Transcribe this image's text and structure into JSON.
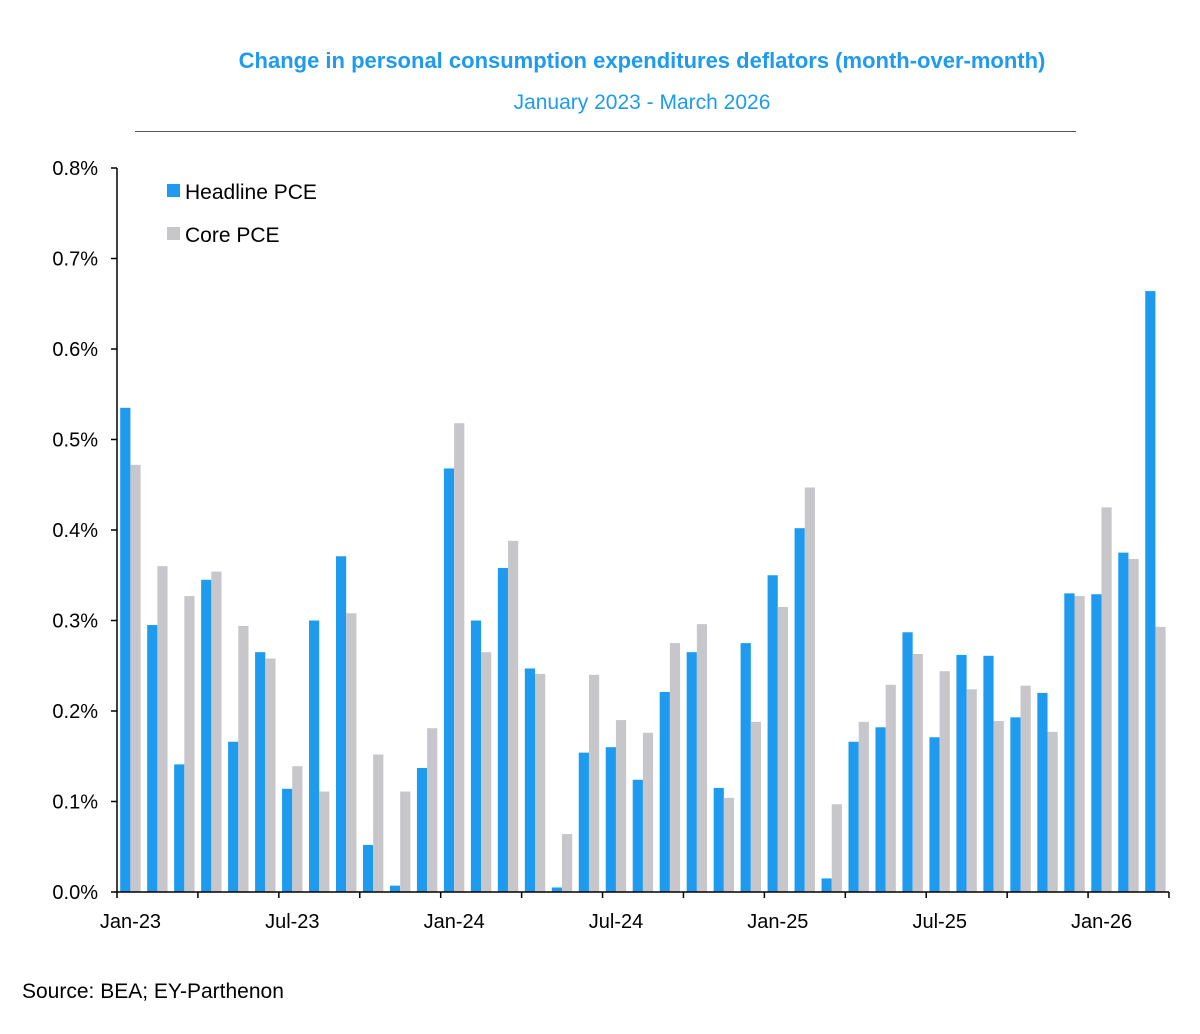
{
  "header": {
    "title": "Change in personal consumption expenditures deflators (month-over-month)",
    "subtitle": "January 2023 - March 2026"
  },
  "footer": {
    "source": "Source: BEA; EY-Parthenon"
  },
  "colors": {
    "headline": "#1E9BEE",
    "core": "#C7C7CB",
    "title": "#1E9BEE"
  },
  "chart_data": {
    "type": "bar",
    "title": "Change in personal consumption expenditures deflators (month-over-month)",
    "subtitle": "January 2023 - March 2026",
    "xlabel": "",
    "ylabel": "",
    "ylim": [
      0,
      0.8
    ],
    "yticks": [
      0.0,
      0.1,
      0.2,
      0.3,
      0.4,
      0.5,
      0.6,
      0.7,
      0.8
    ],
    "ytick_labels": [
      "0.0%",
      "0.1%",
      "0.2%",
      "0.3%",
      "0.4%",
      "0.5%",
      "0.6%",
      "0.7%",
      "0.8%"
    ],
    "x_tick_labels": [
      {
        "index": 0,
        "label": "Jan-23"
      },
      {
        "index": 6,
        "label": "Jul-23"
      },
      {
        "index": 12,
        "label": "Jan-24"
      },
      {
        "index": 18,
        "label": "Jul-24"
      },
      {
        "index": 24,
        "label": "Jan-25"
      },
      {
        "index": 30,
        "label": "Jul-25"
      },
      {
        "index": 36,
        "label": "Jan-26"
      }
    ],
    "categories": [
      "Jan-23",
      "Feb-23",
      "Mar-23",
      "Apr-23",
      "May-23",
      "Jun-23",
      "Jul-23",
      "Aug-23",
      "Sep-23",
      "Oct-23",
      "Nov-23",
      "Dec-23",
      "Jan-24",
      "Feb-24",
      "Mar-24",
      "Apr-24",
      "May-24",
      "Jun-24",
      "Jul-24",
      "Aug-24",
      "Sep-24",
      "Oct-24",
      "Nov-24",
      "Dec-24",
      "Jan-25",
      "Feb-25",
      "Mar-25",
      "Apr-25",
      "May-25",
      "Jun-25",
      "Jul-25",
      "Aug-25",
      "Sep-25",
      "Oct-25",
      "Nov-25",
      "Dec-25",
      "Jan-26",
      "Feb-26",
      "Mar-26"
    ],
    "series": [
      {
        "name": "Headline PCE",
        "color": "#1E9BEE",
        "values": [
          0.535,
          0.295,
          0.141,
          0.345,
          0.166,
          0.265,
          0.114,
          0.3,
          0.371,
          0.052,
          0.007,
          0.137,
          0.468,
          0.3,
          0.358,
          0.247,
          0.005,
          0.154,
          0.16,
          0.124,
          0.221,
          0.265,
          0.115,
          0.275,
          0.35,
          0.402,
          0.015,
          0.166,
          0.182,
          0.287,
          0.171,
          0.262,
          0.261,
          0.193,
          0.22,
          0.33,
          0.329,
          0.375,
          0.664
        ]
      },
      {
        "name": "Core PCE",
        "color": "#C7C7CB",
        "values": [
          0.472,
          0.36,
          0.327,
          0.354,
          0.294,
          0.258,
          0.139,
          0.111,
          0.308,
          0.152,
          0.111,
          0.181,
          0.518,
          0.265,
          0.388,
          0.241,
          0.064,
          0.24,
          0.19,
          0.176,
          0.275,
          0.296,
          0.104,
          0.188,
          0.315,
          0.447,
          0.097,
          0.188,
          0.229,
          0.263,
          0.244,
          0.224,
          0.189,
          0.228,
          0.177,
          0.327,
          0.425,
          0.368,
          0.293
        ]
      }
    ],
    "legend": {
      "position": "top-left",
      "entries": [
        "Headline PCE",
        "Core PCE"
      ]
    },
    "grid": false
  }
}
